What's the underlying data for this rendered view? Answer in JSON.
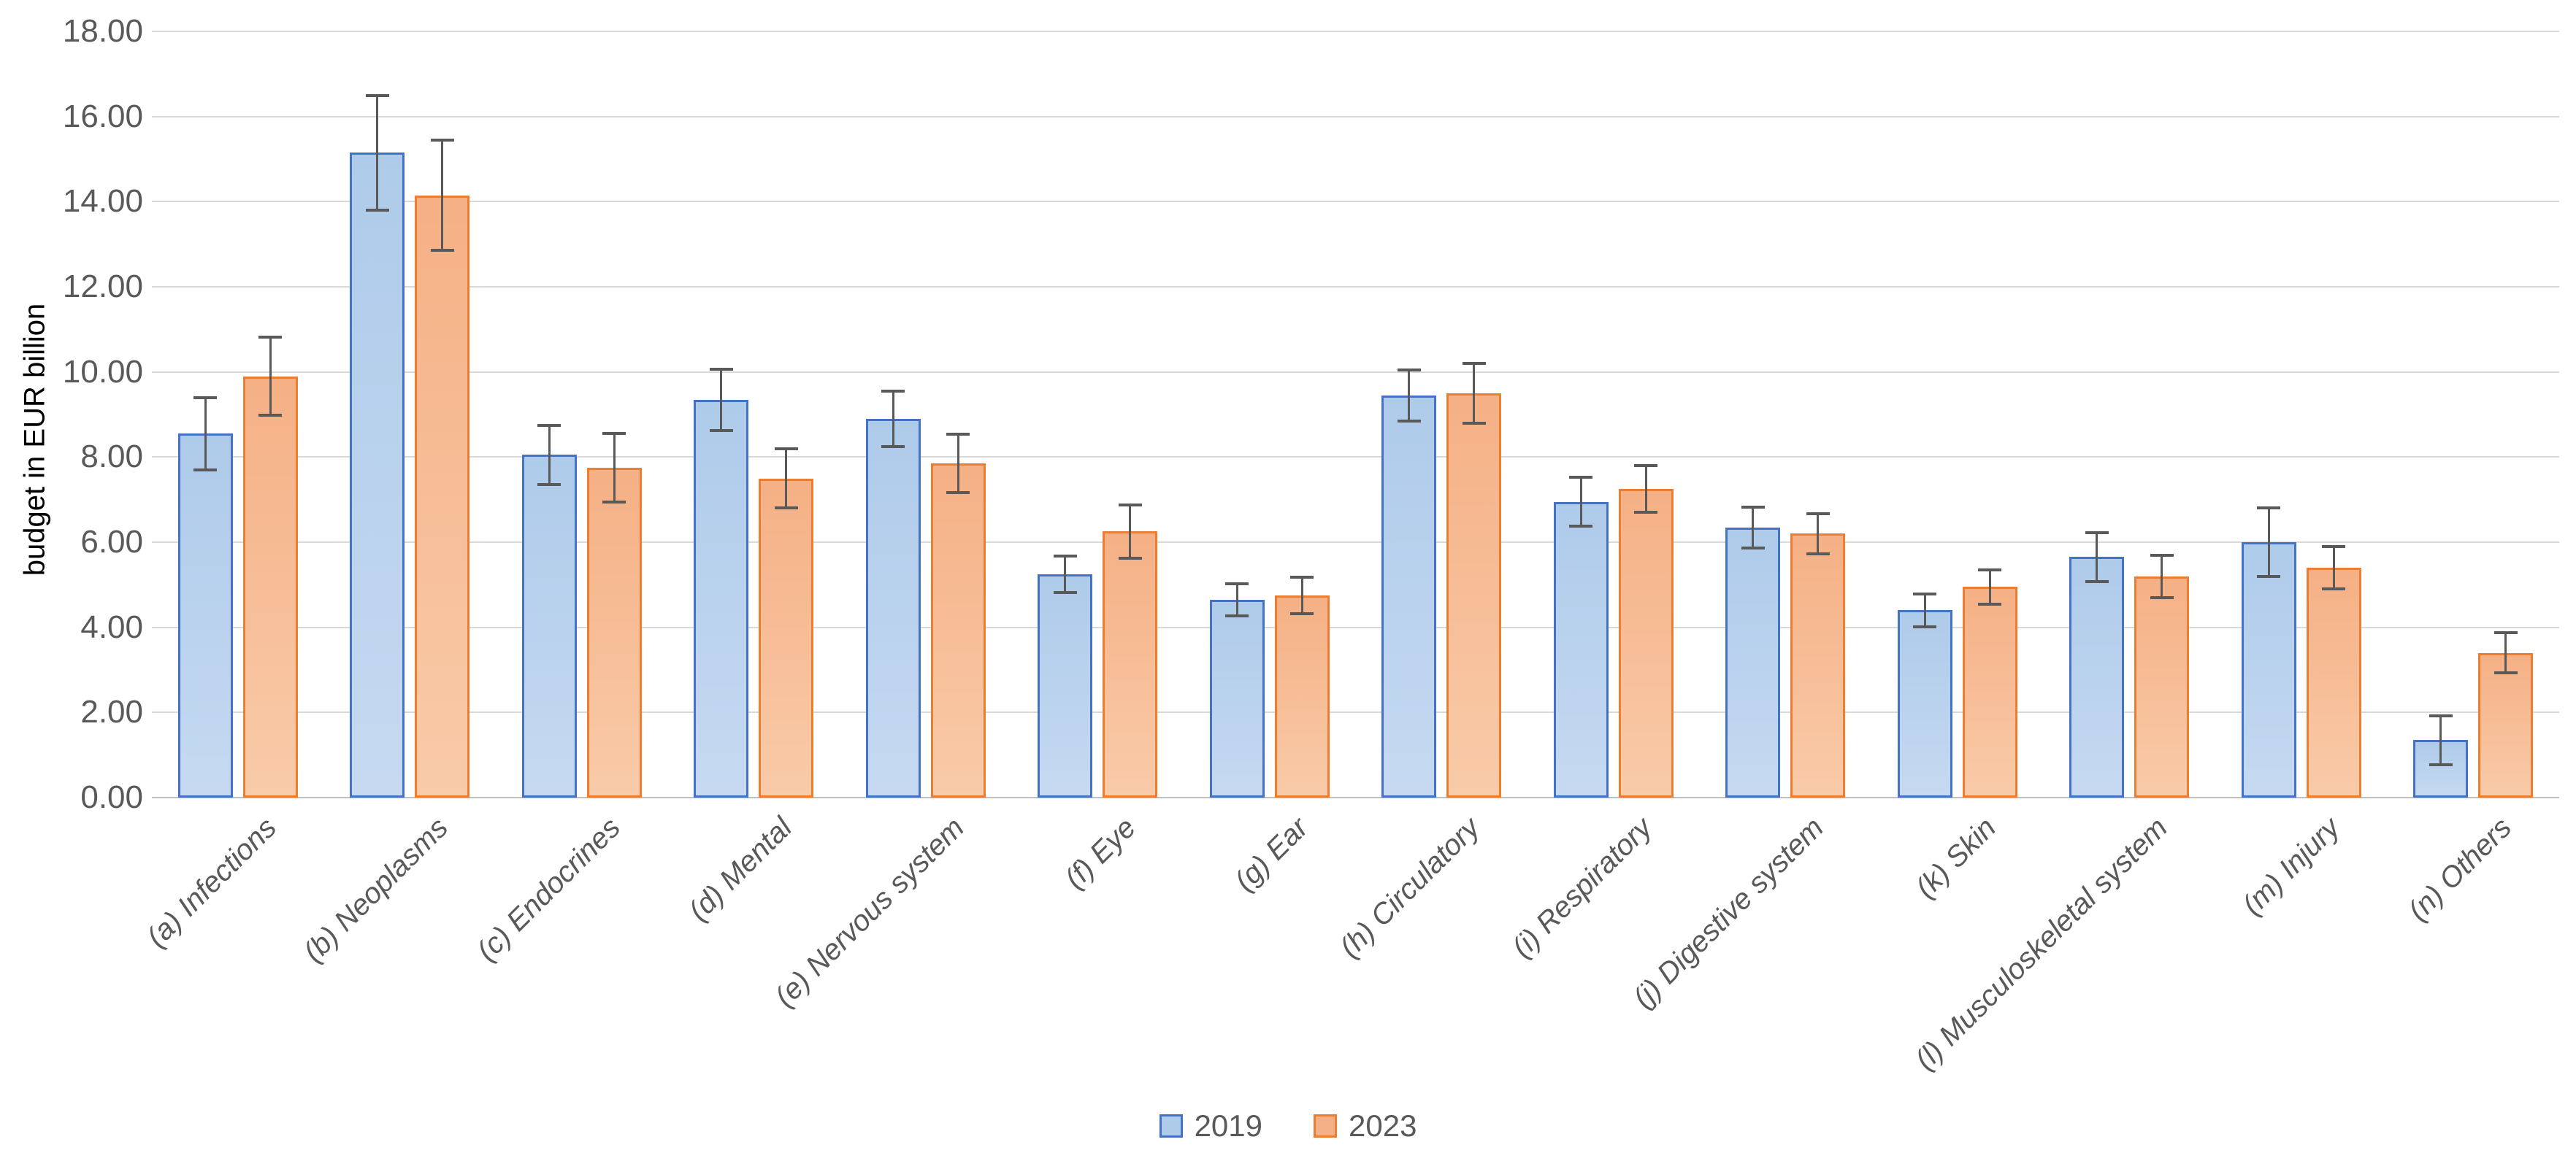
{
  "chart_data": {
    "type": "bar",
    "title": "",
    "xlabel": "",
    "ylabel": "budget in EUR billion",
    "ylim": [
      0,
      18
    ],
    "ytick_step": 2,
    "ytick_decimals": 2,
    "grid": true,
    "legend_position": "bottom-center",
    "error_bars": true,
    "categories": [
      "(a) Infections",
      "(b) Neoplasms",
      "(c) Endocrines",
      "(d) Mental",
      "(e) Nervous system",
      "(f) Eye",
      "(g) Ear",
      "(h) Circulatory",
      "(i) Respiratory",
      "(j) Digestive system",
      "(k) Skin",
      "(l) Musculoskeletal system",
      "(m) Injury",
      "(n) Others"
    ],
    "series": [
      {
        "name": "2019",
        "values": [
          8.55,
          15.15,
          8.05,
          9.35,
          8.9,
          5.25,
          4.65,
          9.45,
          6.95,
          6.35,
          4.4,
          5.65,
          6.0,
          1.35
        ],
        "errors": [
          0.85,
          1.35,
          0.7,
          0.72,
          0.65,
          0.43,
          0.38,
          0.6,
          0.57,
          0.48,
          0.38,
          0.58,
          0.8,
          0.57
        ],
        "fill": "#AECBEA",
        "fill_light": "#C6D9F1",
        "border": "#4472C4"
      },
      {
        "name": "2023",
        "values": [
          9.9,
          14.15,
          7.75,
          7.5,
          7.85,
          6.25,
          4.75,
          9.5,
          7.25,
          6.2,
          4.95,
          5.2,
          5.4,
          3.4
        ],
        "errors": [
          0.92,
          1.3,
          0.8,
          0.7,
          0.68,
          0.63,
          0.43,
          0.7,
          0.55,
          0.47,
          0.4,
          0.5,
          0.5,
          0.47
        ],
        "fill": "#F5B085",
        "fill_light": "#F9CBA9",
        "border": "#ED7D31"
      }
    ],
    "colors": {
      "gridline": "#D9D9D9",
      "axis_line": "#BFBFBF",
      "error_bar": "#595959",
      "text": "#595959"
    }
  }
}
